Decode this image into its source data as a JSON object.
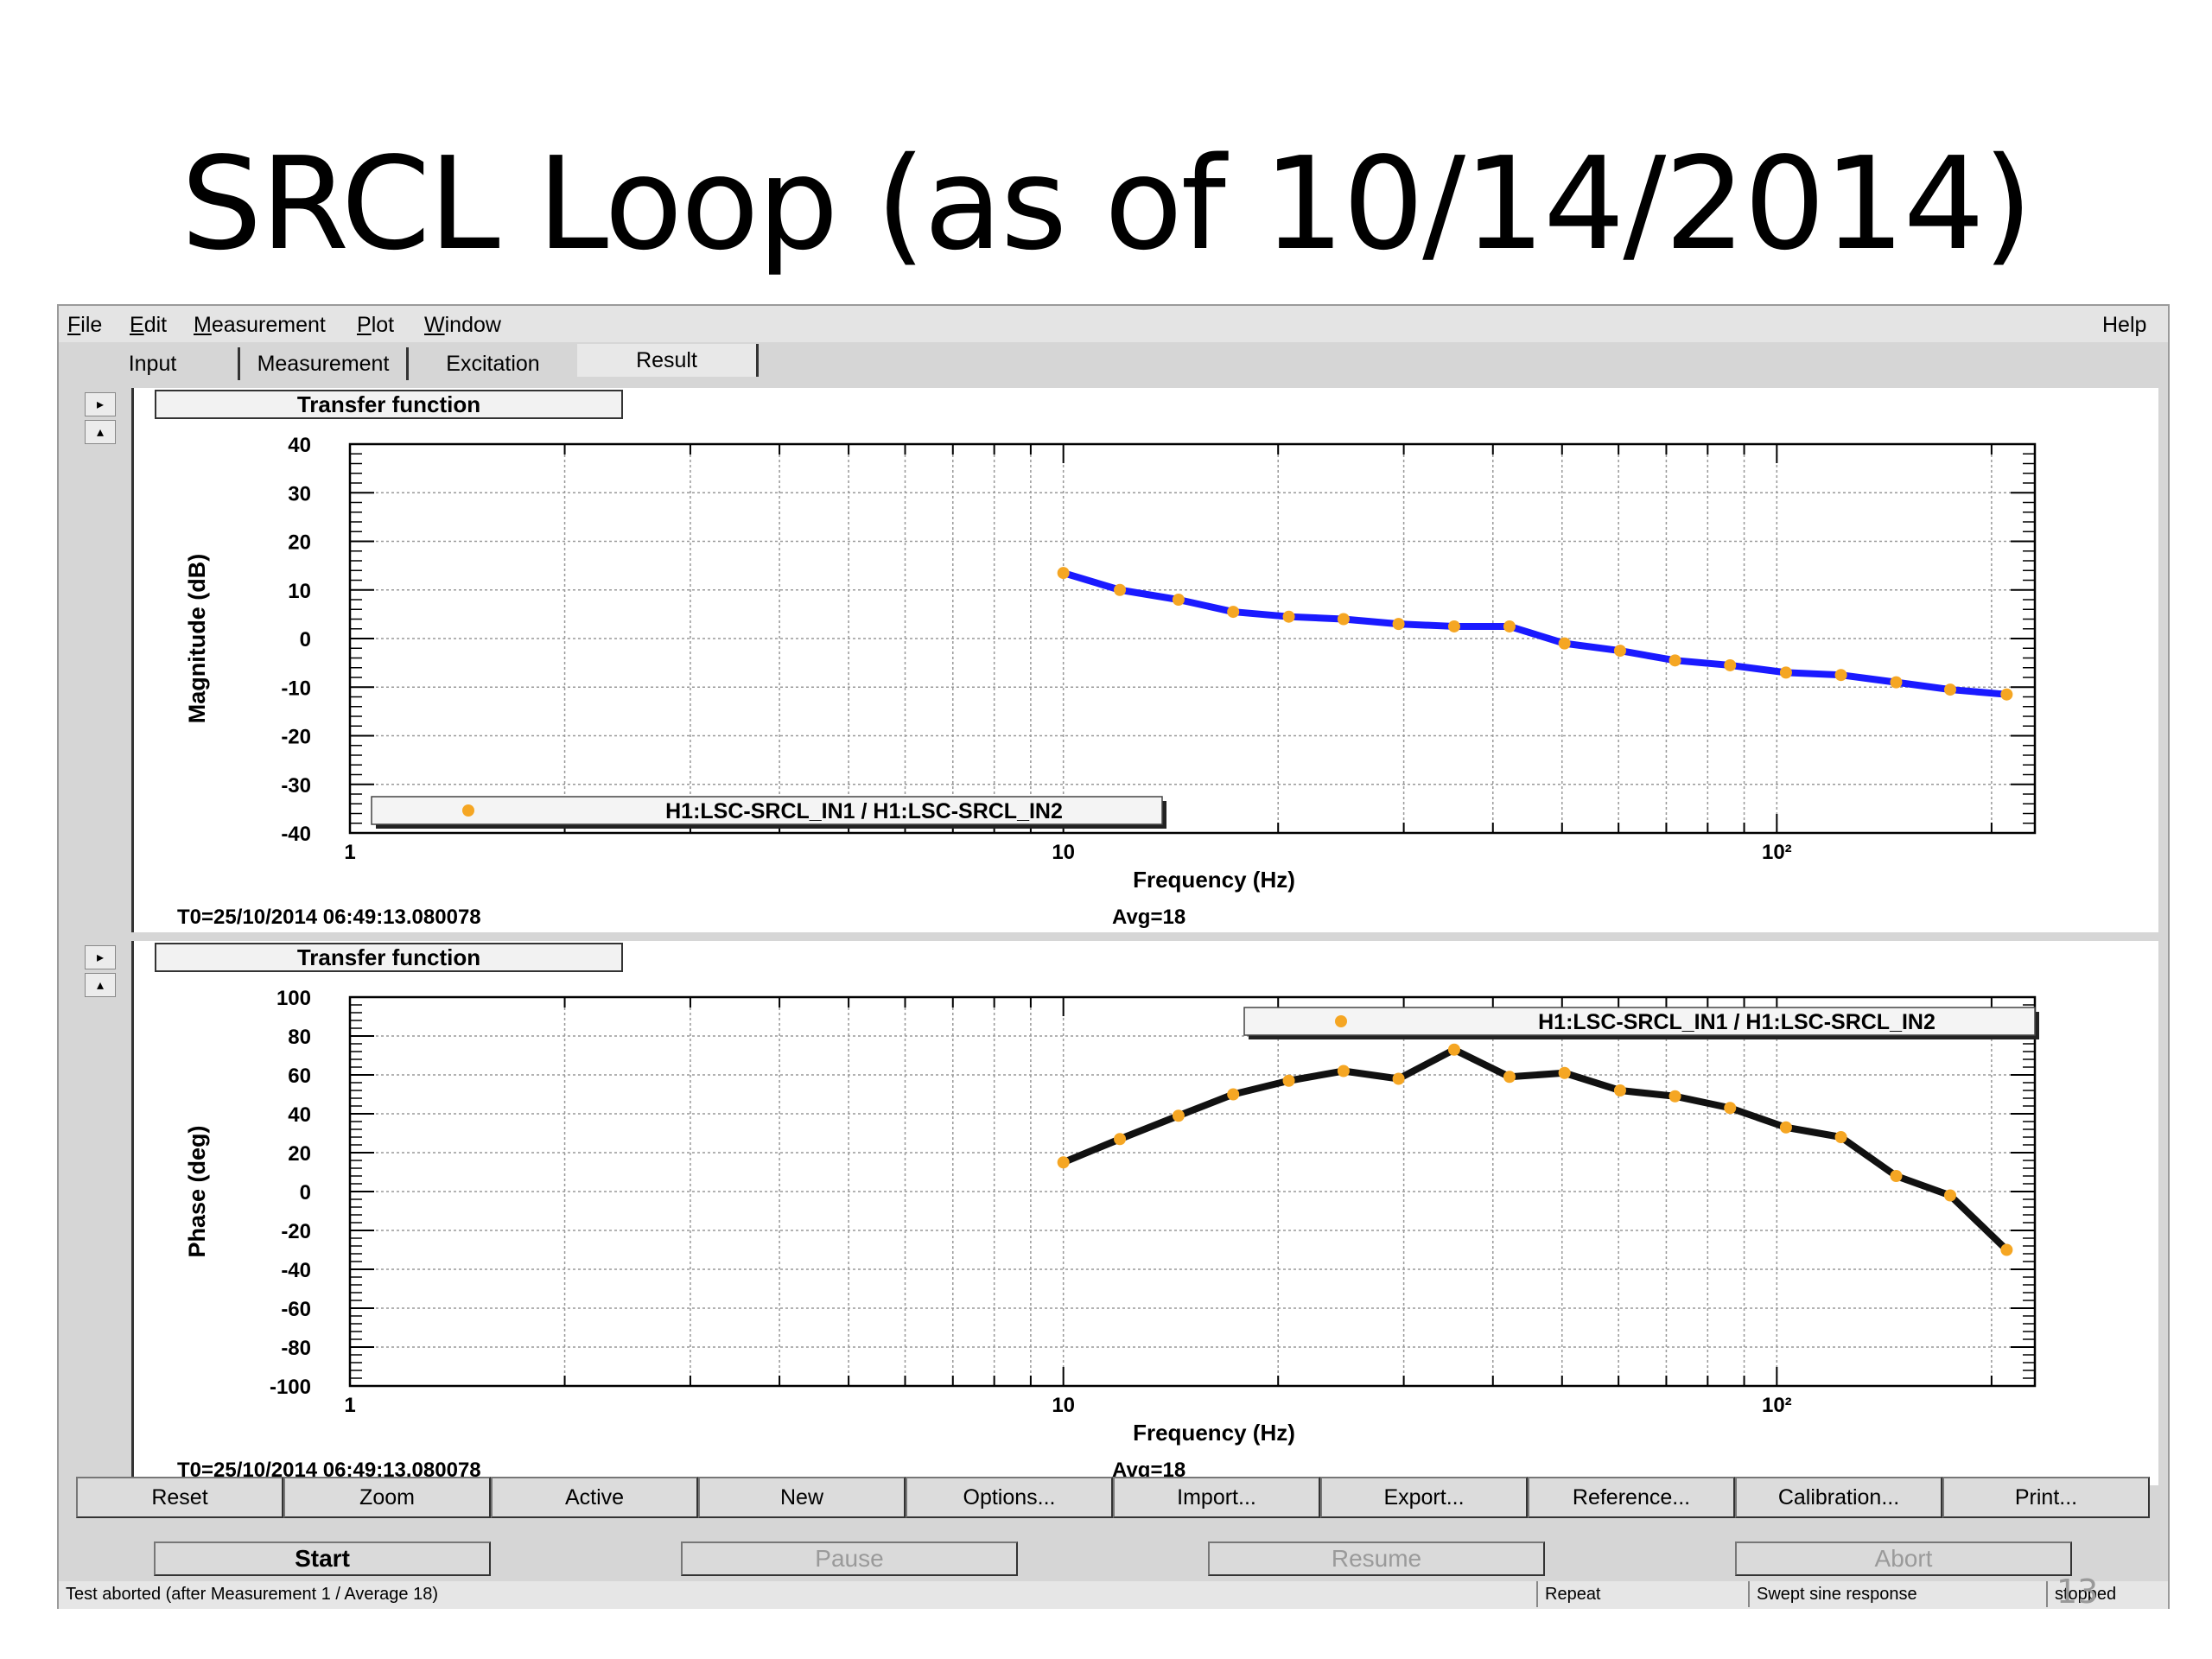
{
  "slide": {
    "title": "SRCL Loop (as of 10/14/2014)",
    "page_number": "13"
  },
  "menu": {
    "items": [
      {
        "label": "File",
        "ul": "F",
        "rest": "ile"
      },
      {
        "label": "Edit",
        "ul": "E",
        "rest": "dit"
      },
      {
        "label": "Measurement",
        "ul": "M",
        "rest": "easurement"
      },
      {
        "label": "Plot",
        "ul": "P",
        "rest": "lot"
      },
      {
        "label": "Window",
        "ul": "W",
        "rest": "indow"
      }
    ],
    "help": "Help"
  },
  "tabs": [
    "Input",
    "Measurement",
    "Excitation",
    "Result"
  ],
  "active_tab": "Result",
  "plots": [
    {
      "title": "Transfer function",
      "ylabel": "Magnitude (dB)",
      "xlabel": "Frequency (Hz)",
      "t0": "T0=25/10/2014 06:49:13.080078",
      "avg": "Avg=18",
      "legend": "H1:LSC-SRCL_IN1 / H1:LSC-SRCL_IN2",
      "legend_position": "bottom-left",
      "line_color": "#1a1aff",
      "marker_color": "#f5a623",
      "yticks": [
        "40",
        "30",
        "20",
        "10",
        "0",
        "-10",
        "-20",
        "-30",
        "-40"
      ]
    },
    {
      "title": "Transfer function",
      "ylabel": "Phase (deg)",
      "xlabel": "Frequency (Hz)",
      "t0": "T0=25/10/2014 06:49:13.080078",
      "avg": "Avg=18",
      "legend": "H1:LSC-SRCL_IN1 / H1:LSC-SRCL_IN2",
      "legend_position": "top-right",
      "line_color": "#111111",
      "marker_color": "#f5a623",
      "yticks": [
        "100",
        "80",
        "60",
        "40",
        "20",
        "0",
        "-20",
        "-40",
        "-60",
        "-80",
        "-100"
      ]
    }
  ],
  "xticks": [
    "1",
    "10",
    "10²"
  ],
  "bottom_buttons": [
    "Reset",
    "Zoom",
    "Active",
    "New",
    "Options...",
    "Import...",
    "Export...",
    "Reference...",
    "Calibration...",
    "Print..."
  ],
  "control_buttons": [
    {
      "label": "Start",
      "enabled": true
    },
    {
      "label": "Pause",
      "enabled": false
    },
    {
      "label": "Resume",
      "enabled": false
    },
    {
      "label": "Abort",
      "enabled": false
    }
  ],
  "status": {
    "message": "Test aborted (after Measurement 1 / Average 18)",
    "repeat": "Repeat",
    "mode": "Swept sine response",
    "state": "stopped"
  },
  "chart_data": [
    {
      "type": "line",
      "title": "Transfer function",
      "xlabel": "Frequency (Hz)",
      "ylabel": "Magnitude (dB)",
      "xscale": "log",
      "xlim": [
        1,
        230
      ],
      "ylim": [
        -40,
        40
      ],
      "grid": true,
      "legend_placement": "bottom-left",
      "series": [
        {
          "name": "H1:LSC-SRCL_IN1 / H1:LSC-SRCL_IN2",
          "x": [
            10,
            12,
            14.5,
            17.3,
            20.7,
            24.7,
            29.5,
            35.3,
            42.2,
            50.4,
            60.3,
            72,
            86,
            103,
            123,
            147,
            175,
            210
          ],
          "y": [
            13.5,
            10,
            8,
            5.5,
            4.5,
            4,
            3,
            2.5,
            2.5,
            -1,
            -2.5,
            -4.5,
            -5.5,
            -7,
            -7.5,
            -9,
            -10.5,
            -11.5
          ]
        }
      ]
    },
    {
      "type": "line",
      "title": "Transfer function",
      "xlabel": "Frequency (Hz)",
      "ylabel": "Phase (deg)",
      "xscale": "log",
      "xlim": [
        1,
        230
      ],
      "ylim": [
        -100,
        100
      ],
      "grid": true,
      "legend_placement": "top-right",
      "series": [
        {
          "name": "H1:LSC-SRCL_IN1 / H1:LSC-SRCL_IN2",
          "x": [
            10,
            12,
            14.5,
            17.3,
            20.7,
            24.7,
            29.5,
            35.3,
            42.2,
            50.4,
            60.3,
            72,
            86,
            103,
            123,
            147,
            175,
            210
          ],
          "y": [
            15,
            27,
            39,
            50,
            57,
            62,
            58,
            73,
            59,
            61,
            52,
            49,
            43,
            33,
            28,
            8,
            -2,
            -30
          ]
        }
      ]
    }
  ]
}
